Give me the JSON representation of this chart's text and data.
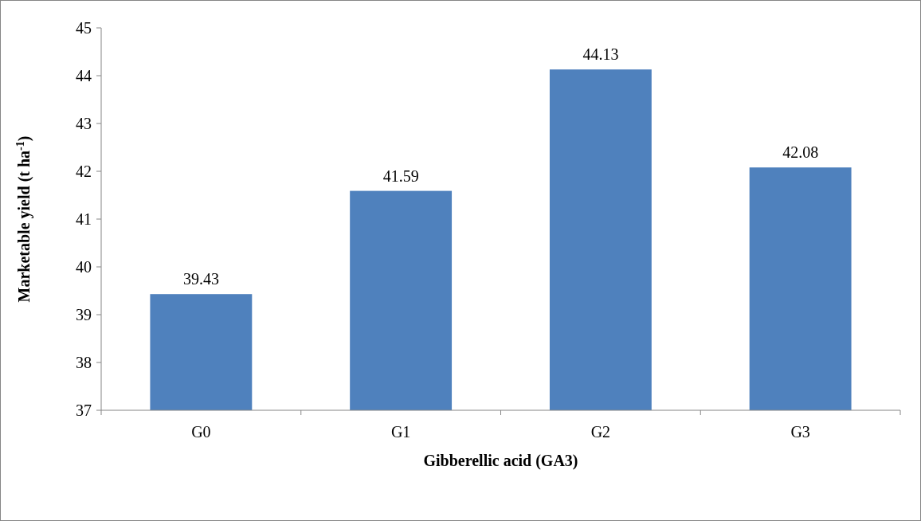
{
  "chart_data": {
    "type": "bar",
    "xlabel": "Gibberellic acid (GA3)",
    "ylabel": "Marketable yield (t ha$^{-1}$)",
    "categories": [
      "G0",
      "G1",
      "G2",
      "G3"
    ],
    "values": [
      39.43,
      41.59,
      44.13,
      42.08
    ],
    "color": "#4f81bd",
    "ylim": [
      37,
      45
    ],
    "yticks": [
      37,
      38,
      39,
      40,
      41,
      42,
      43,
      44,
      45
    ],
    "data_labels": true
  }
}
